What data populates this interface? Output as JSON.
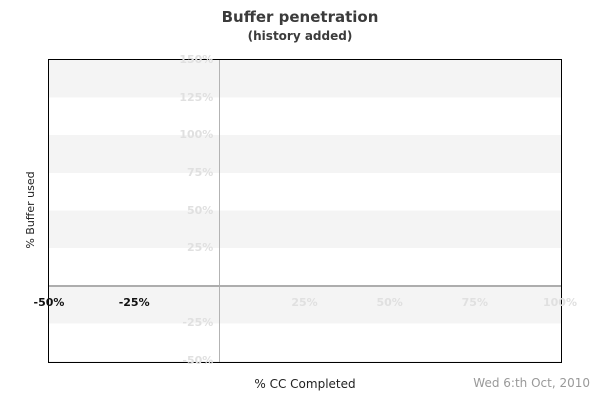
{
  "chart_data": {
    "type": "line",
    "title": "Buffer penetration",
    "subtitle": "(history added)",
    "xlabel": "% CC Completed",
    "ylabel": "% Buffer used",
    "xlim": [
      -50,
      100
    ],
    "ylim": [
      -50,
      150
    ],
    "x_ticks": [
      {
        "value": -50,
        "label": "-50%",
        "style": "dark"
      },
      {
        "value": -25,
        "label": "-25%",
        "style": "dark"
      },
      {
        "value": 25,
        "label": "25%",
        "style": "light"
      },
      {
        "value": 50,
        "label": "50%",
        "style": "light"
      },
      {
        "value": 75,
        "label": "75%",
        "style": "light"
      },
      {
        "value": 100,
        "label": "100%",
        "style": "light"
      }
    ],
    "y_ticks": [
      {
        "value": 150,
        "label": "150%"
      },
      {
        "value": 125,
        "label": "125%"
      },
      {
        "value": 100,
        "label": "100%"
      },
      {
        "value": 75,
        "label": "75%"
      },
      {
        "value": 50,
        "label": "50%"
      },
      {
        "value": 25,
        "label": "25%"
      },
      {
        "value": -25,
        "label": "-25%"
      },
      {
        "value": -50,
        "label": "-50%"
      }
    ],
    "gridlines": {
      "vertical_at_x": [
        0
      ],
      "horizontal_at_y": [
        0
      ]
    },
    "background_bands": {
      "interval_percent": 25,
      "style": "alternating-gray-white"
    },
    "series": [],
    "legend_position": "none"
  },
  "footer": {
    "date": "Wed 6:th Oct, 2010"
  },
  "colors": {
    "band": "#f4f4f4",
    "gridline": "#b3b3b3",
    "axis_border": "#000000",
    "tick_light": "#e0e0e0",
    "tick_dark": "#111111",
    "title_text": "#3b3b3b",
    "date_text": "#999999"
  }
}
